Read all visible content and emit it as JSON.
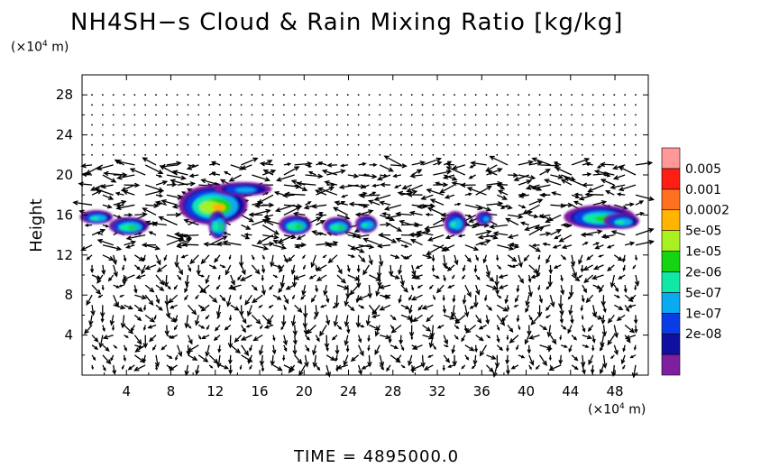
{
  "chart_data": {
    "type": "heatmap",
    "title": "NH4SH−s Cloud & Rain Mixing Ratio [kg/kg]",
    "xlabel": "",
    "ylabel": "Height",
    "x_unit_prefix": "(×10",
    "x_unit_exp": "4",
    "x_unit_suffix": " m)",
    "y_unit_prefix": "(×10",
    "y_unit_exp": "4",
    "y_unit_suffix": " m)",
    "xlim": [
      0,
      51
    ],
    "ylim": [
      0,
      30
    ],
    "x_ticks": [
      4,
      8,
      12,
      16,
      20,
      24,
      28,
      32,
      36,
      40,
      44,
      48
    ],
    "y_ticks": [
      4,
      8,
      12,
      16,
      20,
      24,
      28
    ],
    "colorbar": {
      "labels": [
        "0.005",
        "0.001",
        "0.0002",
        "5e-05",
        "1e-05",
        "2e-06",
        "5e-07",
        "1e-07",
        "2e-08"
      ],
      "colors": [
        "#7f1fa0",
        "#1010a0",
        "#0a3ce6",
        "#0aaaf0",
        "#10e8a8",
        "#14d414",
        "#a8f020",
        "#ffb400",
        "#ff7020",
        "#ff1e14",
        "#ff9898"
      ]
    },
    "cloud_blobs": [
      {
        "x": 1.3,
        "y": 15.8,
        "w": 3.0,
        "h": 1.4,
        "level": 4
      },
      {
        "x": 4.2,
        "y": 14.9,
        "w": 3.6,
        "h": 1.8,
        "level": 5
      },
      {
        "x": 11.8,
        "y": 17.0,
        "w": 6.2,
        "h": 4.0,
        "level": 7
      },
      {
        "x": 14.5,
        "y": 18.6,
        "w": 5.2,
        "h": 1.4,
        "level": 3
      },
      {
        "x": 12.2,
        "y": 15.0,
        "w": 1.6,
        "h": 2.8,
        "level": 5
      },
      {
        "x": 19.2,
        "y": 15.0,
        "w": 3.0,
        "h": 2.0,
        "level": 5
      },
      {
        "x": 23.0,
        "y": 14.9,
        "w": 2.6,
        "h": 1.8,
        "level": 5
      },
      {
        "x": 25.6,
        "y": 15.1,
        "w": 2.0,
        "h": 1.8,
        "level": 4
      },
      {
        "x": 33.6,
        "y": 15.2,
        "w": 2.0,
        "h": 2.4,
        "level": 4
      },
      {
        "x": 36.2,
        "y": 15.7,
        "w": 1.5,
        "h": 1.4,
        "level": 3
      },
      {
        "x": 46.6,
        "y": 15.8,
        "w": 6.4,
        "h": 2.4,
        "level": 5
      },
      {
        "x": 48.6,
        "y": 15.4,
        "w": 3.2,
        "h": 1.6,
        "level": 4
      }
    ]
  },
  "footer": {
    "time_label": "TIME  =  4895000.0"
  }
}
